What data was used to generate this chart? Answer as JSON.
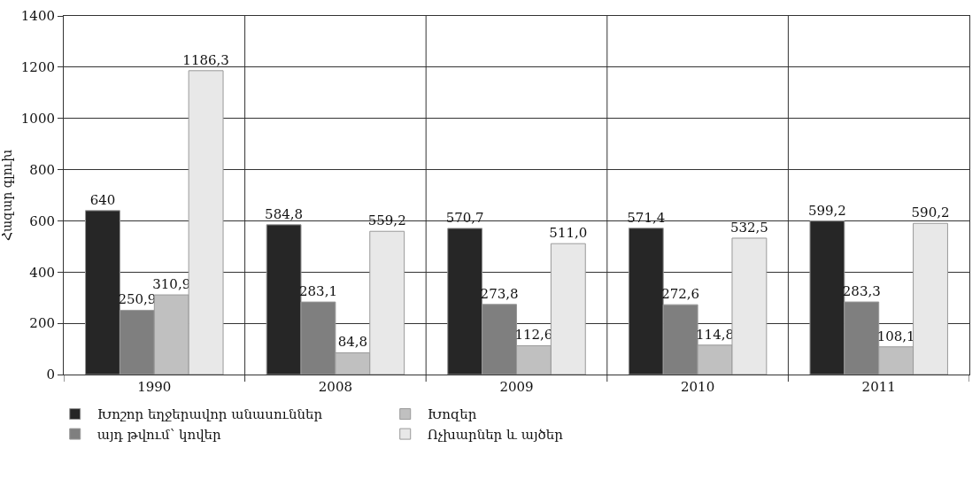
{
  "chart_data": {
    "type": "bar",
    "ylabel": "Հազար գլուխ",
    "categories": [
      "1990",
      "2008",
      "2009",
      "2010",
      "2011"
    ],
    "series": [
      {
        "name": "Խոշոր եղջերավոր անասուններ",
        "color": "#262626",
        "values": [
          640,
          584.8,
          570.7,
          571.4,
          599.2
        ],
        "value_labels": [
          "640",
          "584,8",
          "570,7",
          "571,4",
          "599,2"
        ]
      },
      {
        "name": "այդ թվում՝ կովեր",
        "color": "#7f7f7f",
        "values": [
          250.9,
          283.1,
          273.8,
          272.6,
          283.3
        ],
        "value_labels": [
          "250,9",
          "283,1",
          "273,8",
          "272,6",
          "283,3"
        ]
      },
      {
        "name": "Խոզեր",
        "color": "#c0c0c0",
        "values": [
          310.9,
          84.8,
          112.6,
          114.8,
          108.1
        ],
        "value_labels": [
          "310,9",
          "84,8",
          "112,6",
          "114,8",
          "108,1"
        ]
      },
      {
        "name": "Ոչխարներ և այծեր",
        "color": "#e8e8e8",
        "values": [
          1186.3,
          559.2,
          511.0,
          532.5,
          590.2
        ],
        "value_labels": [
          "1186,3",
          "559,2",
          "511,0",
          "532,5",
          "590,2"
        ]
      }
    ],
    "ylim": [
      0,
      1400
    ],
    "yticks": [
      0,
      200,
      400,
      600,
      800,
      1000,
      1200,
      1400
    ],
    "grid": true,
    "legend": "bottom"
  }
}
